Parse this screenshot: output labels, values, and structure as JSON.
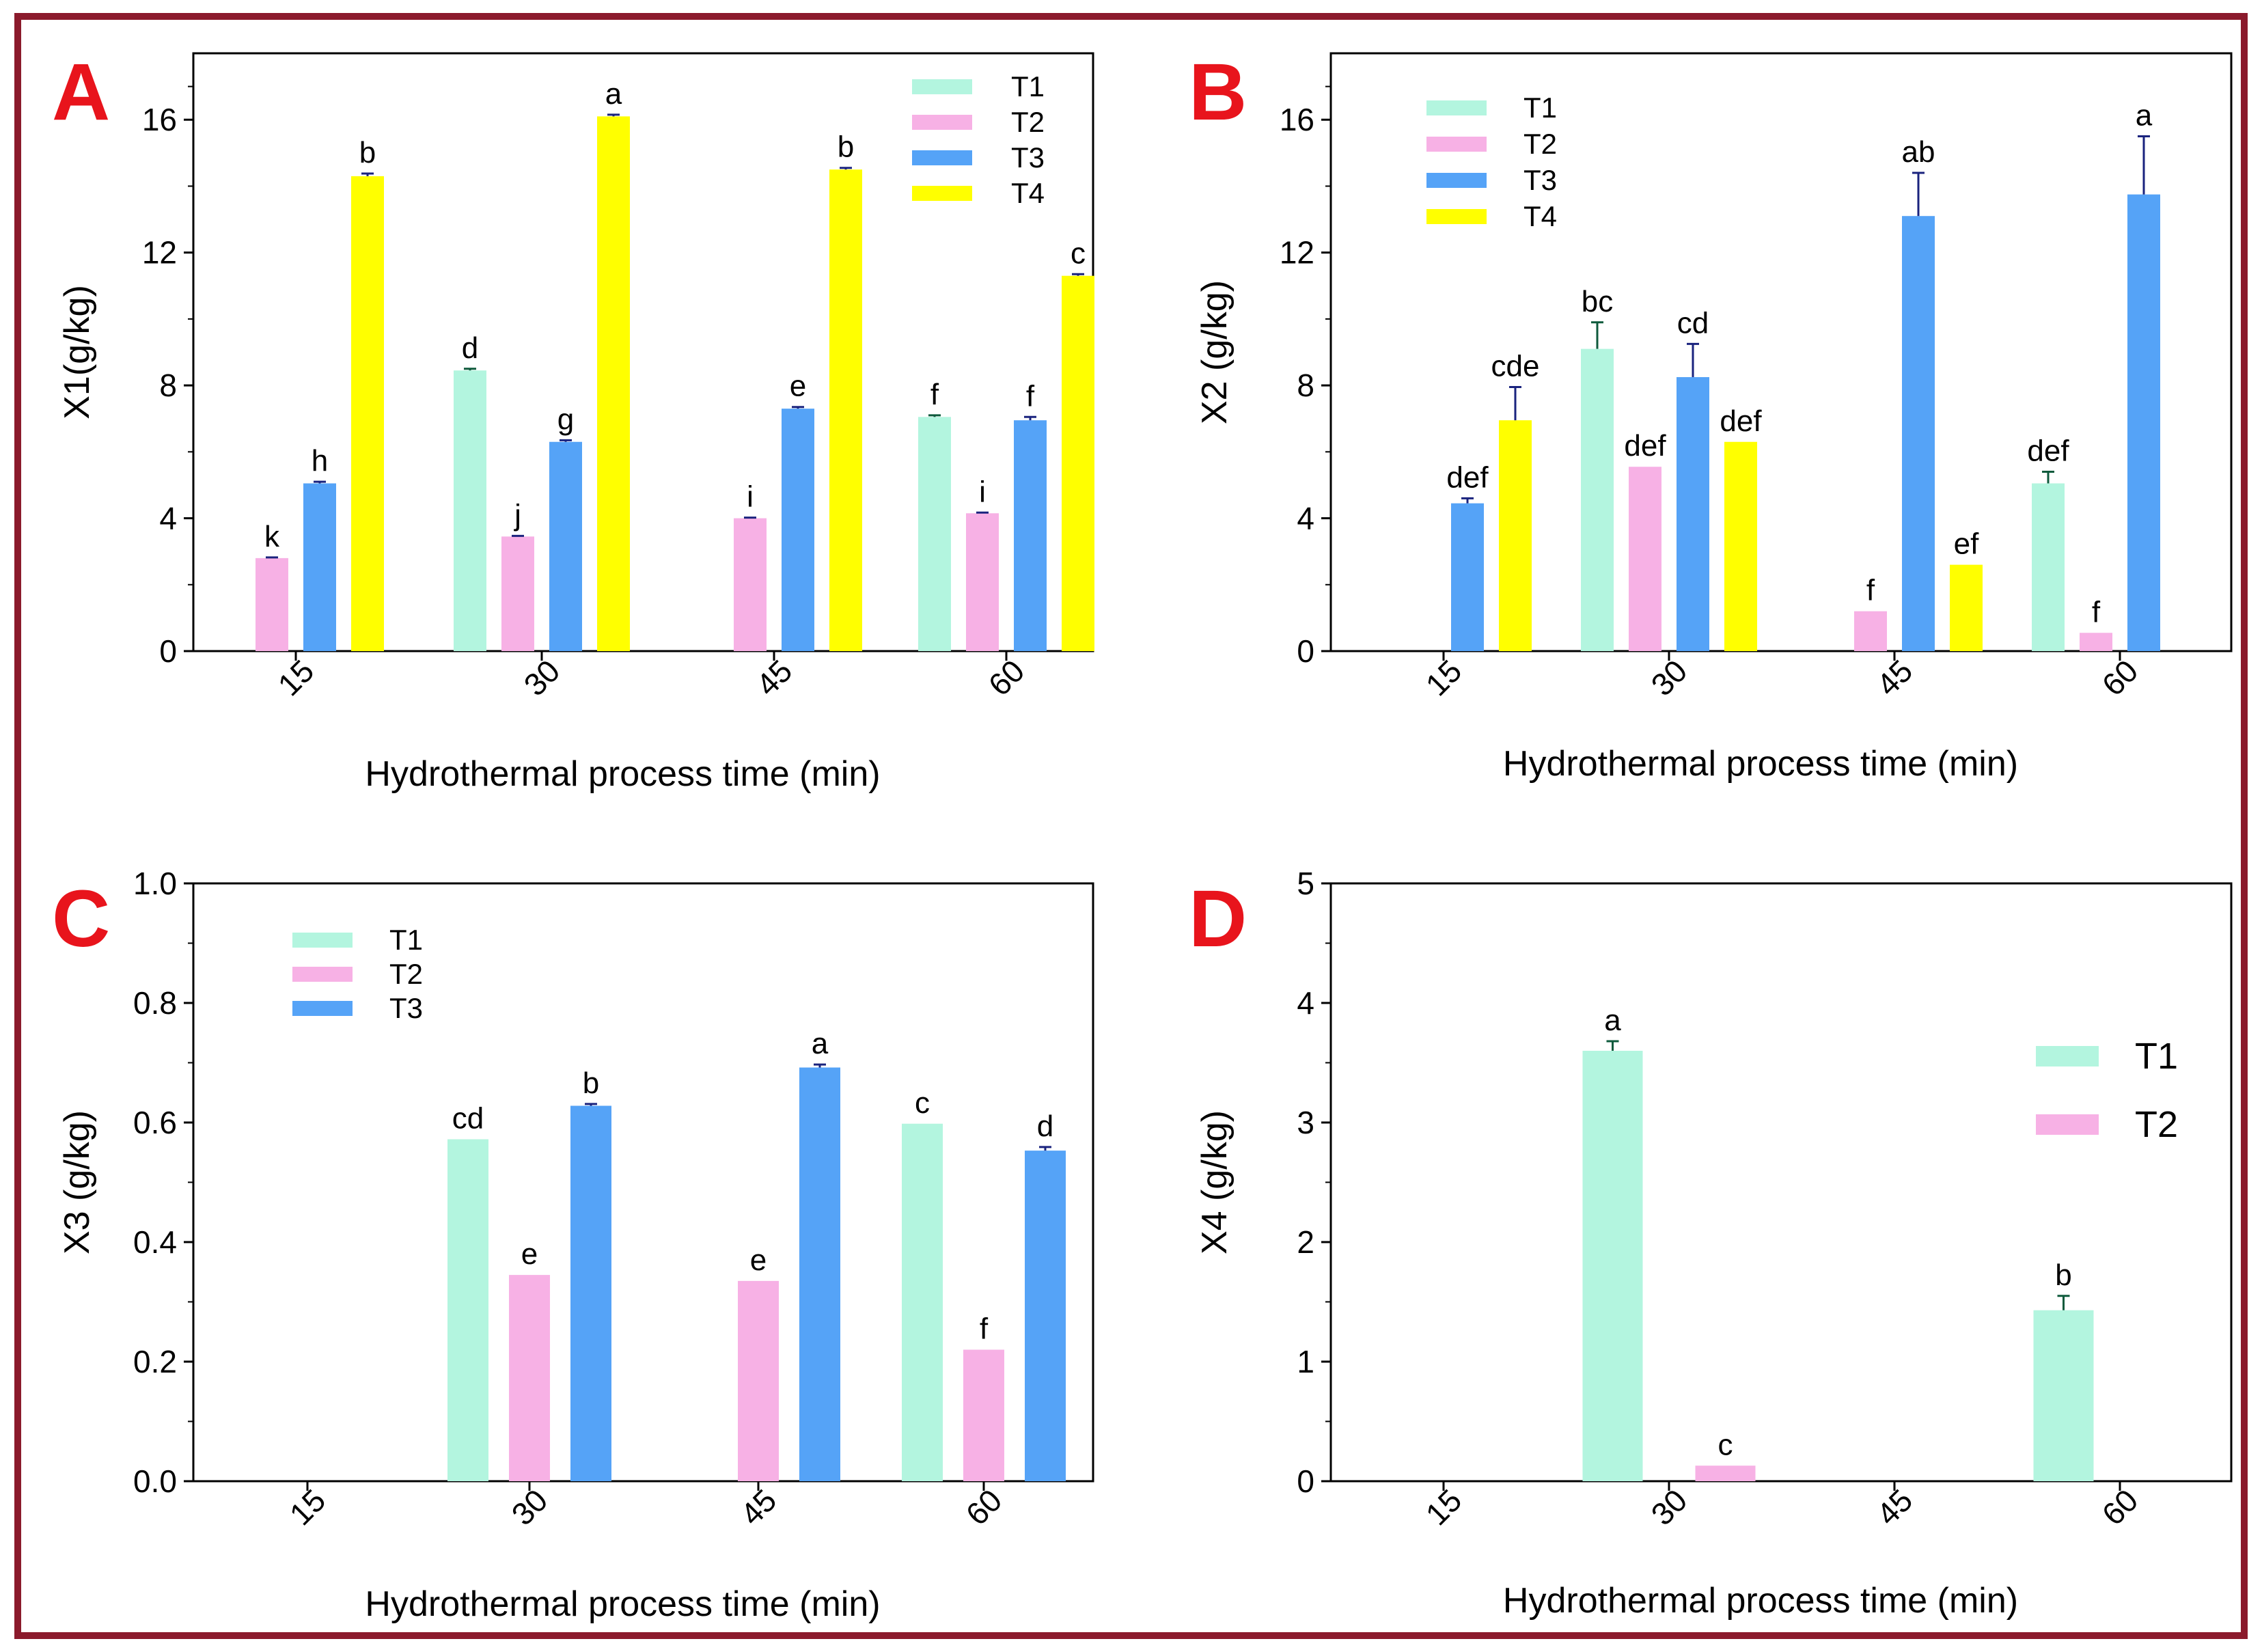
{
  "colors": {
    "T1": "#b3f5df",
    "T2": "#f7b1e5",
    "T3": "#55a3f7",
    "T4": "#ffff00",
    "frame": "#8b1a2c",
    "panel_letter": "#e8141c",
    "errorbar_dark": "#1a237e",
    "errorbar_teal": "#0e5a3c"
  },
  "chart_data": [
    {
      "panel": "A",
      "type": "bar",
      "xlabel": "Hydrothermal process time (min)",
      "ylabel": "X1(g/kg)",
      "categories": [
        "15",
        "30",
        "45",
        "60"
      ],
      "ylim": [
        0,
        18
      ],
      "yticks": [
        0,
        4,
        8,
        12,
        16
      ],
      "ytick_labels": [
        "0",
        "4",
        "8",
        "12",
        "16"
      ],
      "legend": [
        "T1",
        "T2",
        "T3",
        "T4"
      ],
      "legend_position": "top-right",
      "series": [
        {
          "name": "T1",
          "values": [
            null,
            8.45,
            null,
            7.05
          ],
          "errors": [
            null,
            0.05,
            null,
            0.05
          ],
          "labels": [
            null,
            "d",
            null,
            "f"
          ]
        },
        {
          "name": "T2",
          "values": [
            2.8,
            3.45,
            4.0,
            4.15
          ],
          "errors": [
            0.02,
            0.02,
            0.02,
            0.02
          ],
          "labels": [
            "k",
            "j",
            "i",
            "i"
          ]
        },
        {
          "name": "T3",
          "values": [
            5.05,
            6.3,
            7.3,
            6.95
          ],
          "errors": [
            0.05,
            0.05,
            0.05,
            0.1
          ],
          "labels": [
            "h",
            "g",
            "e",
            "f"
          ]
        },
        {
          "name": "T4",
          "values": [
            14.3,
            16.1,
            14.5,
            11.3
          ],
          "errors": [
            0.08,
            0.05,
            0.05,
            0.05
          ],
          "labels": [
            "b",
            "a",
            "b",
            "c"
          ]
        }
      ]
    },
    {
      "panel": "B",
      "type": "bar",
      "xlabel": "Hydrothermal process time (min)",
      "ylabel": "X2 (g/kg)",
      "categories": [
        "15",
        "30",
        "45",
        "60"
      ],
      "ylim": [
        0,
        18
      ],
      "yticks": [
        0,
        4,
        8,
        12,
        16
      ],
      "ytick_labels": [
        "0",
        "4",
        "8",
        "12",
        "16"
      ],
      "legend": [
        "T1",
        "T2",
        "T3",
        "T4"
      ],
      "legend_position": "top-left",
      "series": [
        {
          "name": "T1",
          "values": [
            null,
            9.1,
            null,
            5.05
          ],
          "errors": [
            null,
            0.8,
            null,
            0.35
          ],
          "labels": [
            null,
            "bc",
            null,
            "def"
          ]
        },
        {
          "name": "T2",
          "values": [
            null,
            5.55,
            1.2,
            0.55
          ],
          "errors": [
            null,
            0,
            0,
            0
          ],
          "labels": [
            null,
            "def",
            "f",
            "f"
          ]
        },
        {
          "name": "T3",
          "values": [
            4.45,
            8.25,
            13.1,
            13.75
          ],
          "errors": [
            0.15,
            1.0,
            1.3,
            1.75
          ],
          "labels": [
            "def",
            "cd",
            "ab",
            "a"
          ]
        },
        {
          "name": "T4",
          "values": [
            6.95,
            6.3,
            2.6,
            null
          ],
          "errors": [
            1.0,
            0,
            0,
            null
          ],
          "labels": [
            "cde",
            "def",
            "ef",
            null
          ]
        }
      ]
    },
    {
      "panel": "C",
      "type": "bar",
      "xlabel": "Hydrothermal process time (min)",
      "ylabel": "X3 (g/kg)",
      "categories": [
        "15",
        "30",
        "45",
        "60"
      ],
      "ylim": [
        0,
        1.0
      ],
      "yticks": [
        0,
        0.2,
        0.4,
        0.6,
        0.8,
        1.0
      ],
      "ytick_labels": [
        "0.0",
        "0.2",
        "0.4",
        "0.6",
        "0.8",
        "1.0"
      ],
      "legend": [
        "T1",
        "T2",
        "T3"
      ],
      "legend_position": "top-left",
      "series": [
        {
          "name": "T1",
          "values": [
            null,
            0.572,
            null,
            0.598
          ],
          "errors": [
            null,
            0,
            null,
            0
          ],
          "labels": [
            null,
            "cd",
            null,
            "c"
          ]
        },
        {
          "name": "T2",
          "values": [
            null,
            0.345,
            0.335,
            0.22
          ],
          "errors": [
            null,
            0,
            0,
            0
          ],
          "labels": [
            null,
            "e",
            "e",
            "f"
          ]
        },
        {
          "name": "T3",
          "values": [
            null,
            0.628,
            0.692,
            0.553
          ],
          "errors": [
            null,
            0.003,
            0.005,
            0.006
          ],
          "labels": [
            null,
            "b",
            "a",
            "d"
          ]
        }
      ]
    },
    {
      "panel": "D",
      "type": "bar",
      "xlabel": "Hydrothermal process time (min)",
      "ylabel": "X4 (g/kg)",
      "categories": [
        "15",
        "30",
        "45",
        "60"
      ],
      "ylim": [
        0,
        5
      ],
      "yticks": [
        0,
        1,
        2,
        3,
        4,
        5
      ],
      "ytick_labels": [
        "0",
        "1",
        "2",
        "3",
        "4",
        "5"
      ],
      "legend": [
        "T1",
        "T2"
      ],
      "legend_position": "right",
      "series": [
        {
          "name": "T1",
          "values": [
            null,
            3.6,
            null,
            1.43
          ],
          "errors": [
            null,
            0.08,
            null,
            0.12
          ],
          "labels": [
            null,
            "a",
            null,
            "b"
          ]
        },
        {
          "name": "T2",
          "values": [
            null,
            0.13,
            null,
            null
          ],
          "errors": [
            null,
            0,
            null,
            null
          ],
          "labels": [
            null,
            "c",
            null,
            null
          ]
        }
      ]
    }
  ]
}
